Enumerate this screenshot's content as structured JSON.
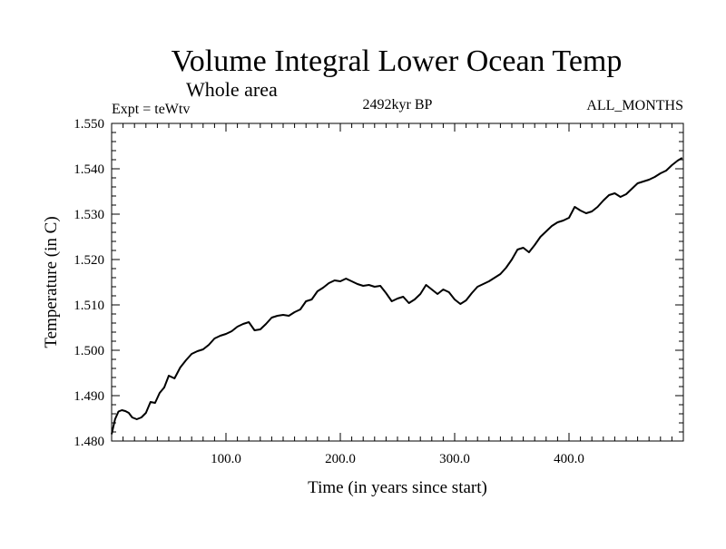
{
  "chart_data": {
    "type": "line",
    "title": "Volume Integral Lower Ocean Temp",
    "subtitle": "Whole area",
    "left_label": "Expt = teWtv",
    "center_label": "2492kyr BP",
    "right_label": "ALL_MONTHS",
    "xlabel": "Time (in years since start)",
    "ylabel": "Temperature (in C)",
    "xlim": [
      0,
      500
    ],
    "ylim": [
      1.48,
      1.55
    ],
    "x_ticks": [
      100,
      200,
      300,
      400
    ],
    "x_tick_labels": [
      "100.0",
      "200.0",
      "300.0",
      "400.0"
    ],
    "y_ticks": [
      1.48,
      1.49,
      1.5,
      1.51,
      1.52,
      1.53,
      1.54,
      1.55
    ],
    "y_tick_labels": [
      "1.480",
      "1.490",
      "1.500",
      "1.510",
      "1.520",
      "1.530",
      "1.540",
      "1.550"
    ],
    "grid": false,
    "series": [
      {
        "name": "teWtv",
        "x": [
          0,
          3,
          6,
          9,
          12,
          15,
          18,
          22,
          26,
          30,
          34,
          38,
          42,
          46,
          50,
          55,
          60,
          65,
          70,
          75,
          80,
          85,
          90,
          95,
          100,
          105,
          110,
          115,
          120,
          125,
          130,
          135,
          140,
          145,
          150,
          155,
          160,
          165,
          170,
          175,
          180,
          185,
          190,
          195,
          200,
          205,
          210,
          215,
          220,
          225,
          230,
          235,
          240,
          245,
          250,
          255,
          260,
          265,
          270,
          275,
          280,
          285,
          290,
          295,
          300,
          305,
          310,
          315,
          320,
          325,
          330,
          335,
          340,
          345,
          350,
          355,
          360,
          365,
          370,
          375,
          380,
          385,
          390,
          395,
          400,
          405,
          410,
          415,
          420,
          425,
          430,
          435,
          440,
          445,
          450,
          455,
          460,
          465,
          470,
          475,
          480,
          485,
          490,
          495,
          499
        ],
        "values": [
          1.4815,
          1.4848,
          1.4865,
          1.4868,
          1.4866,
          1.4862,
          1.4852,
          1.4848,
          1.4852,
          1.4862,
          1.4886,
          1.4884,
          1.4906,
          1.4918,
          1.4944,
          1.4938,
          1.4962,
          1.4978,
          1.4992,
          1.4998,
          1.5002,
          1.5012,
          1.5026,
          1.5032,
          1.5036,
          1.5042,
          1.5052,
          1.5058,
          1.5062,
          1.5044,
          1.5046,
          1.5058,
          1.5072,
          1.5076,
          1.5078,
          1.5076,
          1.5084,
          1.509,
          1.5108,
          1.5112,
          1.513,
          1.5138,
          1.5148,
          1.5154,
          1.5152,
          1.5158,
          1.5152,
          1.5146,
          1.5142,
          1.5144,
          1.514,
          1.5142,
          1.5126,
          1.5108,
          1.5114,
          1.5118,
          1.5104,
          1.5112,
          1.5124,
          1.5144,
          1.5134,
          1.5124,
          1.5134,
          1.5128,
          1.5112,
          1.5102,
          1.511,
          1.5126,
          1.514,
          1.5146,
          1.5152,
          1.516,
          1.5168,
          1.5182,
          1.52,
          1.5222,
          1.5226,
          1.5216,
          1.5232,
          1.525,
          1.5262,
          1.5274,
          1.5282,
          1.5286,
          1.5292,
          1.5316,
          1.5308,
          1.5302,
          1.5306,
          1.5316,
          1.533,
          1.5342,
          1.5346,
          1.5338,
          1.5344,
          1.5356,
          1.5368,
          1.5372,
          1.5376,
          1.5382,
          1.539,
          1.5396,
          1.5408,
          1.5418,
          1.5424
        ]
      }
    ]
  }
}
